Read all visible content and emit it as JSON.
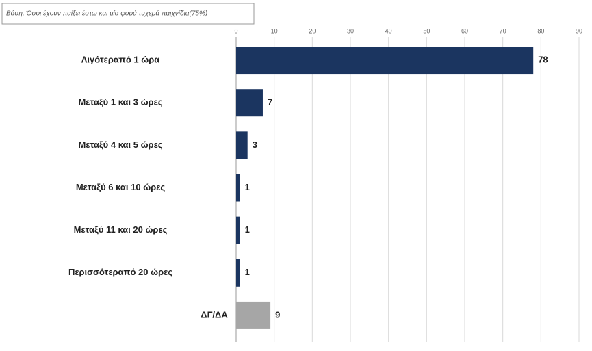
{
  "chart_data": {
    "type": "hbar",
    "subtitle": "Βάση: Όσοι έχουν παίξει έστω και μία φορά τυχερά παιχνίδια(75%)",
    "categories": [
      "Λιγότεραπό 1  ώρα",
      "Μεταξύ 1 και 3  ώρες",
      "Μεταξύ 4  και 5  ώρες",
      "Μεταξύ 6  και 10 ώρες",
      "Μεταξύ 11 και 20  ώρες",
      "Περισσότεραπό  20  ώρες",
      "ΔΓ/ΔΑ"
    ],
    "values": [
      78,
      7,
      3,
      1,
      1,
      1,
      9
    ],
    "colors": [
      "#1b3560",
      "#1b3560",
      "#1b3560",
      "#1b3560",
      "#1b3560",
      "#1b3560",
      "#a6a6a6"
    ],
    "xlim": [
      0,
      90
    ],
    "xticks": [
      0,
      10,
      20,
      30,
      40,
      50,
      60,
      70,
      80,
      90
    ],
    "grid": true
  }
}
